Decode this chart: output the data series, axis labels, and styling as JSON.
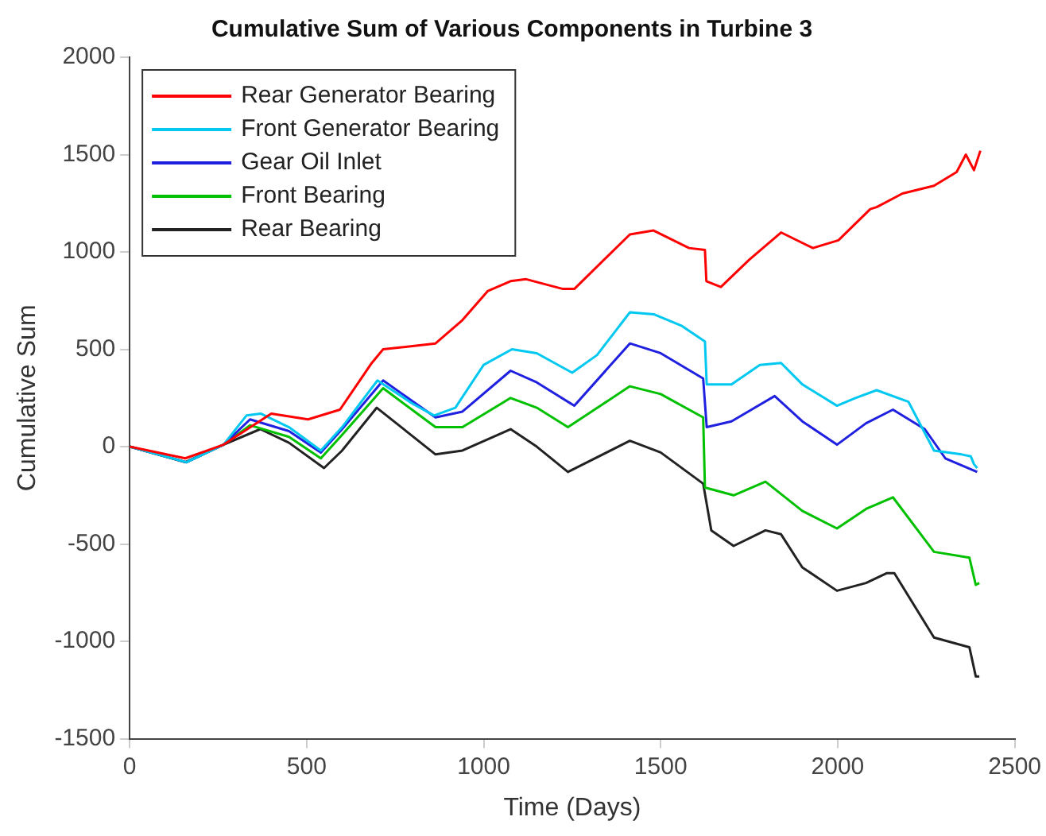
{
  "chart_data": {
    "type": "line",
    "title": "Cumulative Sum of Various Components in Turbine 3",
    "xlabel": "Time (Days)",
    "ylabel": "Cumulative Sum",
    "xlim": [
      0,
      2500
    ],
    "xticks": [
      0,
      500,
      1000,
      1500,
      2000,
      2500
    ],
    "ylim": [
      -1500,
      2000
    ],
    "yticks": [
      -1500,
      -1000,
      -500,
      0,
      500,
      1000,
      1500,
      2000
    ],
    "grid": false,
    "legend": "top left",
    "marker": "none",
    "line_style": "solid",
    "series": [
      {
        "name": "Rear Generator Bearing",
        "color": "#ff0000",
        "x": [
          0,
          157,
          265,
          400,
          504,
          594,
          684,
          716,
          864,
          940,
          1012,
          1076,
          1120,
          1224,
          1256,
          1413,
          1480,
          1580,
          1625,
          1629,
          1670,
          1750,
          1840,
          1930,
          2002,
          2092,
          2110,
          2183,
          2272,
          2336,
          2362,
          2385,
          2403
        ],
        "values": [
          0,
          -60,
          10,
          170,
          140,
          190,
          430,
          500,
          530,
          650,
          800,
          850,
          860,
          810,
          810,
          1090,
          1110,
          1020,
          1010,
          850,
          820,
          960,
          1100,
          1020,
          1060,
          1220,
          1230,
          1300,
          1340,
          1410,
          1500,
          1420,
          1520
        ]
      },
      {
        "name": "Front Generator Bearing",
        "color": "#00c8f0",
        "x": [
          0,
          160,
          265,
          330,
          370,
          450,
          540,
          600,
          700,
          800,
          860,
          920,
          1000,
          1080,
          1150,
          1250,
          1320,
          1413,
          1480,
          1560,
          1625,
          1630,
          1700,
          1780,
          1840,
          1900,
          1998,
          2050,
          2110,
          2200,
          2272,
          2350,
          2376,
          2385,
          2394
        ],
        "values": [
          0,
          -80,
          10,
          160,
          170,
          100,
          -20,
          100,
          340,
          220,
          160,
          200,
          420,
          500,
          480,
          380,
          470,
          690,
          680,
          620,
          540,
          320,
          320,
          420,
          430,
          320,
          210,
          250,
          290,
          230,
          -20,
          -40,
          -50,
          -90,
          -110
        ]
      },
      {
        "name": "Gear Oil Inlet",
        "color": "#2020e0",
        "x": [
          0,
          160,
          265,
          340,
          450,
          540,
          600,
          716,
          864,
          940,
          1076,
          1150,
          1256,
          1413,
          1500,
          1620,
          1630,
          1700,
          1822,
          1900,
          1998,
          2080,
          2156,
          2246,
          2304,
          2394
        ],
        "values": [
          0,
          -80,
          10,
          140,
          80,
          -30,
          90,
          340,
          150,
          180,
          390,
          330,
          210,
          530,
          480,
          350,
          100,
          130,
          260,
          130,
          10,
          120,
          190,
          90,
          -60,
          -130
        ]
      },
      {
        "name": "Front Bearing",
        "color": "#00c000",
        "x": [
          0,
          160,
          265,
          340,
          450,
          540,
          600,
          716,
          864,
          940,
          1076,
          1150,
          1238,
          1413,
          1500,
          1620,
          1625,
          1706,
          1796,
          1900,
          1998,
          2080,
          2156,
          2272,
          2372,
          2390,
          2400
        ],
        "values": [
          0,
          -80,
          10,
          110,
          50,
          -60,
          60,
          300,
          100,
          100,
          250,
          200,
          100,
          310,
          270,
          150,
          -210,
          -250,
          -180,
          -330,
          -420,
          -320,
          -260,
          -540,
          -570,
          -710,
          -700
        ]
      },
      {
        "name": "Rear Bearing",
        "color": "#222222",
        "x": [
          0,
          157,
          265,
          369,
          450,
          549,
          600,
          698,
          864,
          940,
          1076,
          1150,
          1238,
          1413,
          1500,
          1620,
          1643,
          1706,
          1796,
          1840,
          1900,
          1998,
          2080,
          2138,
          2160,
          2272,
          2372,
          2390,
          2400
        ],
        "values": [
          0,
          -80,
          10,
          90,
          20,
          -110,
          -20,
          200,
          -40,
          -20,
          90,
          0,
          -130,
          30,
          -30,
          -190,
          -430,
          -510,
          -430,
          -450,
          -620,
          -740,
          -700,
          -650,
          -650,
          -980,
          -1030,
          -1180,
          -1180
        ]
      }
    ]
  }
}
